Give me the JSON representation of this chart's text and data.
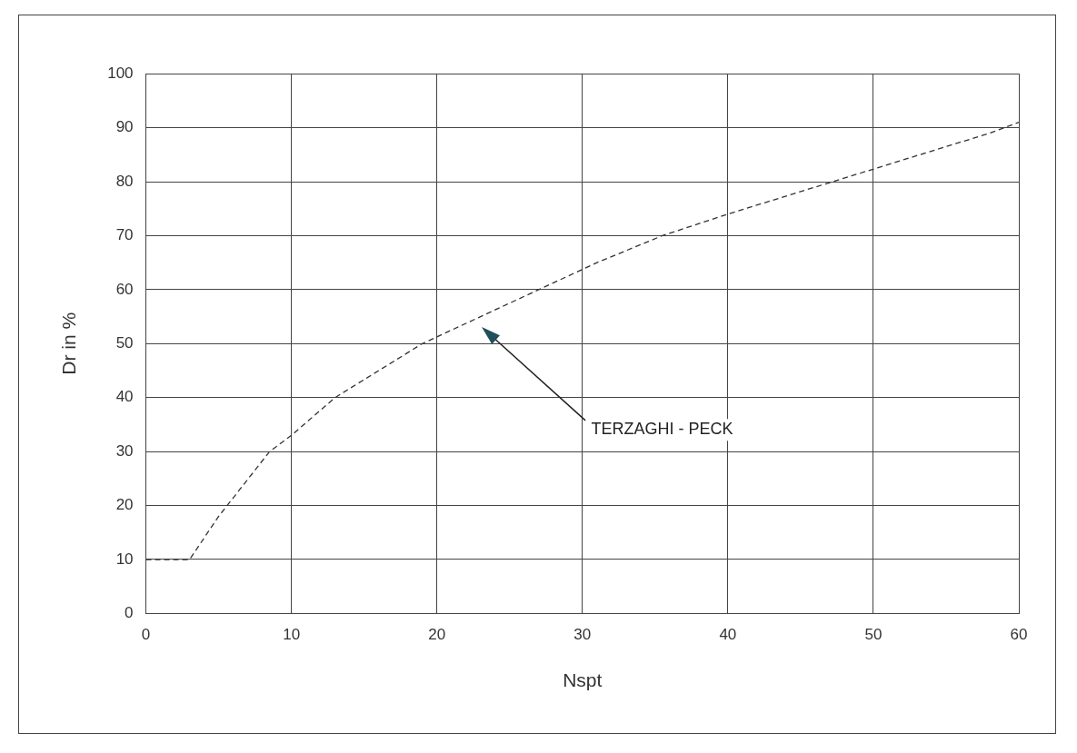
{
  "chart_data": {
    "type": "line",
    "xlabel": "Nspt",
    "ylabel": "Dr in %",
    "x": [
      0,
      3,
      5,
      8.5,
      10,
      13,
      16,
      19,
      23,
      27,
      31,
      35.5,
      40,
      46,
      52,
      58,
      60
    ],
    "series": [
      {
        "color": "#333333",
        "values": [
          10,
          10,
          18,
          30,
          33,
          40,
          45,
          50,
          55,
          60,
          65,
          70,
          74,
          79,
          84,
          89,
          91
        ]
      }
    ],
    "xlim": [
      0,
      60
    ],
    "xticks": [
      0,
      10,
      20,
      30,
      40,
      50,
      60
    ],
    "ylim": [
      0,
      100
    ],
    "yticks": [
      0,
      10,
      20,
      30,
      40,
      50,
      60,
      70,
      80,
      90,
      100
    ],
    "grid": true,
    "legend": false,
    "marker": "none",
    "line_style": "dashed",
    "annotations": [
      "TERZAGHI - PECK"
    ]
  }
}
